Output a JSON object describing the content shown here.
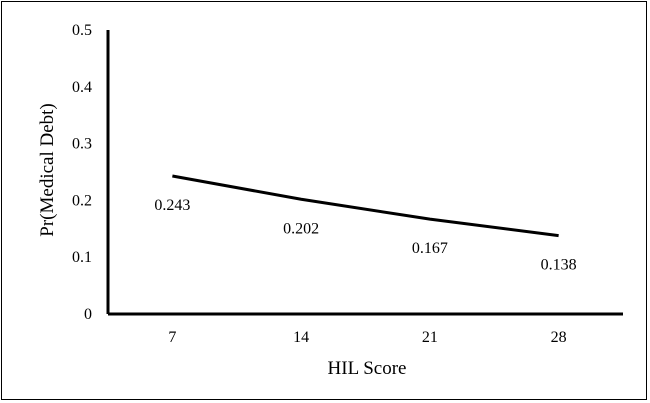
{
  "chart_data": {
    "type": "line",
    "title": "",
    "xlabel": "HIL Score",
    "ylabel": "Pr(Medical Debt)",
    "categories": [
      "7",
      "14",
      "21",
      "28"
    ],
    "x": [
      7,
      14,
      21,
      28
    ],
    "series": [
      {
        "values": [
          0.243,
          0.202,
          0.167,
          0.138
        ],
        "labels": [
          "0.243",
          "0.202",
          "0.167",
          "0.138"
        ]
      }
    ],
    "ylim": [
      0,
      0.5
    ],
    "yticks": [
      "0",
      "0.1",
      "0.2",
      "0.3",
      "0.4",
      "0.5"
    ],
    "grid": false,
    "legend": "none",
    "line_color": "#000000"
  }
}
